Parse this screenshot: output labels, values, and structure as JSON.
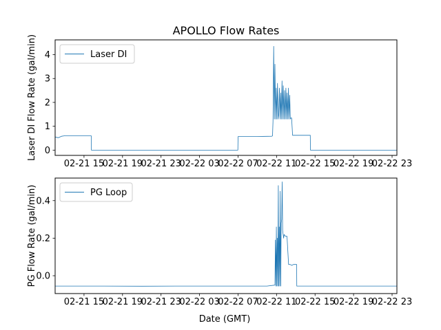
{
  "figure": {
    "title": "APOLLO Flow Rates",
    "xlabel": "Date (GMT)"
  },
  "colors": {
    "series": "#1f77b4",
    "axes": "#000000",
    "background": "#ffffff"
  },
  "chart_data": [
    {
      "type": "line",
      "title": "APOLLO Flow Rates",
      "xlabel": "",
      "ylabel": "Laser DI Flow Rate (gal/min)",
      "xlim": [
        "2022-02-21 12:00",
        "2022-02-22 23:30"
      ],
      "ylim": [
        -0.22,
        4.62
      ],
      "grid": false,
      "legend": "top-left",
      "x_ticks": [
        "02-21 15",
        "02-21 19",
        "02-21 23",
        "02-22 03",
        "02-22 07",
        "02-22 11",
        "02-22 15",
        "02-22 19",
        "02-22 23"
      ],
      "y_ticks": [
        0,
        1,
        2,
        3,
        4
      ],
      "series": [
        {
          "name": "Laser DI",
          "x": [
            "2022-02-21 12:00",
            "2022-02-21 12:20",
            "2022-02-21 12:40",
            "2022-02-21 13:00",
            "2022-02-21 14:00",
            "2022-02-21 15:00",
            "2022-02-21 15:45",
            "2022-02-21 15:46",
            "2022-02-21 20:00",
            "2022-02-22 03:00",
            "2022-02-22 06:59",
            "2022-02-22 07:00",
            "2022-02-22 09:00",
            "2022-02-22 10:30",
            "2022-02-22 10:35",
            "2022-02-22 10:38",
            "2022-02-22 10:42",
            "2022-02-22 10:46",
            "2022-02-22 10:50",
            "2022-02-22 10:54",
            "2022-02-22 10:58",
            "2022-02-22 11:02",
            "2022-02-22 11:06",
            "2022-02-22 11:10",
            "2022-02-22 11:14",
            "2022-02-22 11:18",
            "2022-02-22 11:22",
            "2022-02-22 11:26",
            "2022-02-22 11:30",
            "2022-02-22 11:34",
            "2022-02-22 11:38",
            "2022-02-22 11:42",
            "2022-02-22 11:46",
            "2022-02-22 11:50",
            "2022-02-22 11:54",
            "2022-02-22 11:58",
            "2022-02-22 12:02",
            "2022-02-22 12:06",
            "2022-02-22 12:10",
            "2022-02-22 12:14",
            "2022-02-22 12:18",
            "2022-02-22 12:22",
            "2022-02-22 12:26",
            "2022-02-22 12:30",
            "2022-02-22 12:34",
            "2022-02-22 12:40",
            "2022-02-22 14:00",
            "2022-02-22 14:30",
            "2022-02-22 14:31",
            "2022-02-22 19:00",
            "2022-02-22 23:30"
          ],
          "values": [
            0.55,
            0.52,
            0.58,
            0.6,
            0.6,
            0.6,
            0.6,
            0.0,
            0.0,
            0.0,
            0.0,
            0.57,
            0.57,
            0.58,
            0.6,
            1.2,
            4.35,
            1.3,
            3.6,
            1.3,
            2.6,
            1.3,
            2.8,
            1.3,
            1.5,
            2.6,
            1.3,
            2.4,
            1.3,
            2.9,
            1.3,
            2.7,
            1.3,
            2.5,
            1.3,
            2.6,
            1.3,
            2.4,
            1.3,
            2.6,
            1.3,
            2.3,
            1.3,
            1.35,
            1.35,
            0.62,
            0.62,
            0.62,
            0.0,
            0.0,
            0.0
          ]
        }
      ]
    },
    {
      "type": "line",
      "title": "",
      "xlabel": "Date (GMT)",
      "ylabel": "PG Flow Rate (gal/min)",
      "xlim": [
        "2022-02-21 12:00",
        "2022-02-22 23:30"
      ],
      "ylim": [
        -0.095,
        0.52
      ],
      "grid": false,
      "legend": "top-left",
      "x_ticks": [
        "02-21 15",
        "02-21 19",
        "02-21 23",
        "02-22 03",
        "02-22 07",
        "02-22 11",
        "02-22 15",
        "02-22 19",
        "02-22 23"
      ],
      "y_ticks": [
        0.0,
        0.2,
        0.4
      ],
      "series": [
        {
          "name": "PG Loop",
          "x": [
            "2022-02-21 12:00",
            "2022-02-21 14:00",
            "2022-02-21 17:00",
            "2022-02-21 21:00",
            "2022-02-22 01:00",
            "2022-02-22 05:00",
            "2022-02-22 08:00",
            "2022-02-22 10:00",
            "2022-02-22 10:50",
            "2022-02-22 10:53",
            "2022-02-22 10:56",
            "2022-02-22 10:59",
            "2022-02-22 11:02",
            "2022-02-22 11:05",
            "2022-02-22 11:08",
            "2022-02-22 11:11",
            "2022-02-22 11:14",
            "2022-02-22 11:17",
            "2022-02-22 11:20",
            "2022-02-22 11:23",
            "2022-02-22 11:26",
            "2022-02-22 11:29",
            "2022-02-22 11:32",
            "2022-02-22 11:35",
            "2022-02-22 11:38",
            "2022-02-22 11:41",
            "2022-02-22 11:44",
            "2022-02-22 11:47",
            "2022-02-22 11:55",
            "2022-02-22 12:05",
            "2022-02-22 12:15",
            "2022-02-22 12:25",
            "2022-02-22 12:35",
            "2022-02-22 12:45",
            "2022-02-22 12:55",
            "2022-02-22 13:05",
            "2022-02-22 13:06",
            "2022-02-22 15:00",
            "2022-02-22 19:00",
            "2022-02-22 23:30"
          ],
          "values": [
            -0.055,
            -0.055,
            -0.055,
            -0.056,
            -0.055,
            -0.055,
            -0.055,
            -0.055,
            -0.05,
            0.19,
            -0.055,
            0.26,
            -0.055,
            0.2,
            -0.055,
            0.48,
            -0.055,
            0.26,
            -0.055,
            0.45,
            -0.055,
            0.28,
            0.3,
            0.5,
            0.24,
            0.22,
            0.2,
            0.22,
            0.21,
            0.21,
            0.06,
            0.06,
            0.055,
            0.06,
            0.06,
            0.06,
            -0.055,
            -0.055,
            -0.055,
            -0.055
          ]
        }
      ]
    }
  ]
}
